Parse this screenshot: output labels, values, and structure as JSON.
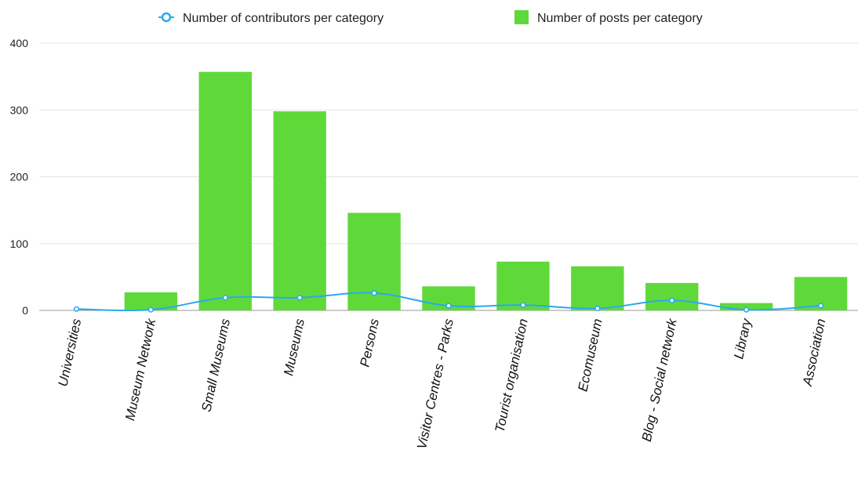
{
  "chart_data": {
    "type": "bar",
    "categories": [
      "Universities",
      "Museum Network",
      "Small Museums",
      "Museums",
      "Persons",
      "Visitor Centres - Parks",
      "Tourist organisation",
      "Ecomuseum",
      "Blog - Social network",
      "Library",
      "Association"
    ],
    "series": [
      {
        "name": "Number of posts per category",
        "type": "bar",
        "color": "#5fd93a",
        "values": [
          0,
          27,
          357,
          298,
          146,
          36,
          73,
          66,
          41,
          11,
          50
        ]
      },
      {
        "name": "Number of contributors per category",
        "type": "line",
        "color": "#2aa8f0",
        "values": [
          2,
          1,
          19,
          19,
          26,
          7,
          8,
          3,
          15,
          1,
          7
        ]
      }
    ],
    "title": "",
    "xlabel": "",
    "ylabel": "",
    "ylim": [
      0,
      400
    ],
    "yticks": [
      0,
      100,
      200,
      300,
      400
    ],
    "grid": true,
    "legend_position": "top"
  }
}
